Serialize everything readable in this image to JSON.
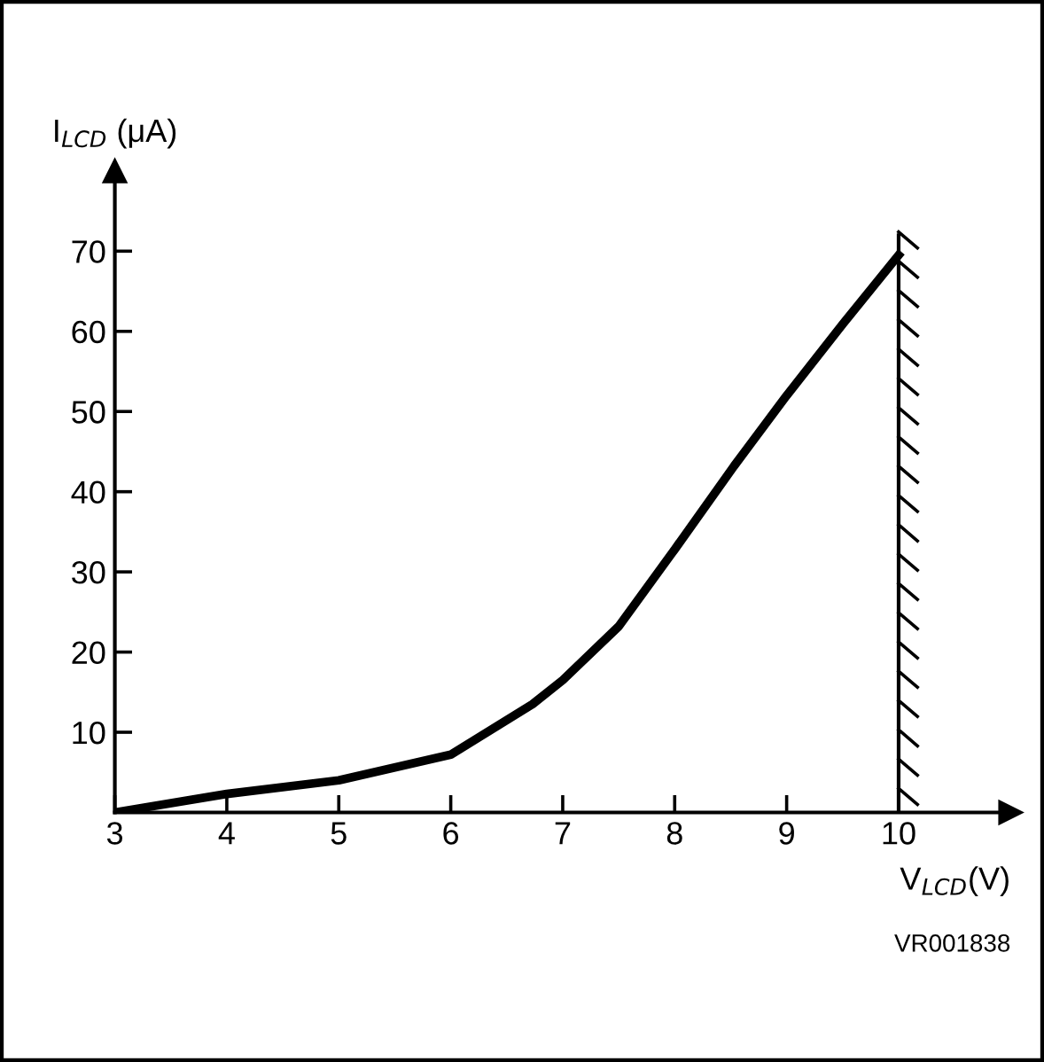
{
  "chart_data": {
    "type": "line",
    "xlabel": "V$_{LCD}$(V)",
    "ylabel": "I$_{LCD}$ (μA)",
    "x": [
      3,
      4,
      5,
      6,
      6.73,
      7,
      7.5,
      8,
      8.53,
      9,
      9.5,
      10
    ],
    "series": [
      {
        "color": "#000000",
        "values": [
          0,
          2.3,
          4.0,
          7.2,
          13.5,
          16.5,
          23.2,
          32.8,
          43.2,
          52,
          60.9,
          69.5
        ]
      }
    ],
    "xlim": [
      3,
      11
    ],
    "ylim": [
      0,
      80
    ],
    "xticks": [
      3,
      4,
      5,
      6,
      7,
      8,
      9,
      10
    ],
    "yticks": [
      10,
      20,
      30,
      40,
      50,
      60,
      70
    ],
    "ref_lines": [
      {
        "axis": "x",
        "value": 10,
        "color": "#000000"
      }
    ],
    "annotations": [
      "VR001838"
    ],
    "grid": false,
    "legend": false,
    "marker": "none",
    "line_style": "solid"
  }
}
